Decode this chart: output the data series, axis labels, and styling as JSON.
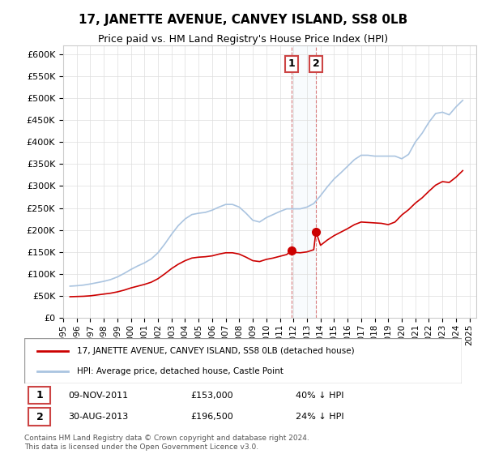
{
  "title": "17, JANETTE AVENUE, CANVEY ISLAND, SS8 0LB",
  "subtitle": "Price paid vs. HM Land Registry's House Price Index (HPI)",
  "ylabel": "",
  "ylim": [
    0,
    620000
  ],
  "yticks": [
    0,
    50000,
    100000,
    150000,
    200000,
    250000,
    300000,
    350000,
    400000,
    450000,
    500000,
    550000,
    600000
  ],
  "ytick_labels": [
    "£0",
    "£50K",
    "£100K",
    "£150K",
    "£200K",
    "£250K",
    "£300K",
    "£350K",
    "£400K",
    "£450K",
    "£500K",
    "£550K",
    "£600K"
  ],
  "hpi_color": "#aac4e0",
  "sale_color": "#cc0000",
  "marker_color": "#cc0000",
  "sale1_year": 2011.86,
  "sale1_price": 153000,
  "sale1_label": "1",
  "sale1_date": "09-NOV-2011",
  "sale1_hpi_pct": "40%",
  "sale2_year": 2013.66,
  "sale2_price": 196500,
  "sale2_label": "2",
  "sale2_date": "30-AUG-2013",
  "sale2_hpi_pct": "24%",
  "legend_label_sale": "17, JANETTE AVENUE, CANVEY ISLAND, SS8 0LB (detached house)",
  "legend_label_hpi": "HPI: Average price, detached house, Castle Point",
  "footer": "Contains HM Land Registry data © Crown copyright and database right 2024.\nThis data is licensed under the Open Government Licence v3.0.",
  "background_color": "#ffffff",
  "grid_color": "#dddddd",
  "hpi_data": {
    "years": [
      1995.5,
      1996.0,
      1996.5,
      1997.0,
      1997.5,
      1998.0,
      1998.5,
      1999.0,
      1999.5,
      2000.0,
      2000.5,
      2001.0,
      2001.5,
      2002.0,
      2002.5,
      2003.0,
      2003.5,
      2004.0,
      2004.5,
      2005.0,
      2005.5,
      2006.0,
      2006.5,
      2007.0,
      2007.5,
      2008.0,
      2008.5,
      2009.0,
      2009.5,
      2010.0,
      2010.5,
      2011.0,
      2011.5,
      2012.0,
      2012.5,
      2013.0,
      2013.5,
      2014.0,
      2014.5,
      2015.0,
      2015.5,
      2016.0,
      2016.5,
      2017.0,
      2017.5,
      2018.0,
      2018.5,
      2019.0,
      2019.5,
      2020.0,
      2020.5,
      2021.0,
      2021.5,
      2022.0,
      2022.5,
      2023.0,
      2023.5,
      2024.0,
      2024.5
    ],
    "values": [
      72000,
      73000,
      74500,
      77000,
      80000,
      83000,
      87000,
      93000,
      101000,
      110000,
      118000,
      125000,
      134000,
      148000,
      168000,
      190000,
      210000,
      225000,
      235000,
      238000,
      240000,
      245000,
      252000,
      258000,
      258000,
      252000,
      238000,
      222000,
      218000,
      228000,
      235000,
      242000,
      248000,
      248000,
      248000,
      252000,
      260000,
      278000,
      298000,
      316000,
      330000,
      345000,
      360000,
      370000,
      370000,
      368000,
      368000,
      368000,
      368000,
      362000,
      372000,
      400000,
      420000,
      445000,
      465000,
      468000,
      462000,
      480000,
      495000
    ]
  },
  "sale_data": {
    "years": [
      1995.5,
      1996.0,
      1996.5,
      1997.0,
      1997.5,
      1998.0,
      1998.5,
      1999.0,
      1999.5,
      2000.0,
      2000.5,
      2001.0,
      2001.5,
      2002.0,
      2002.5,
      2003.0,
      2003.5,
      2004.0,
      2004.5,
      2005.0,
      2005.5,
      2006.0,
      2006.5,
      2007.0,
      2007.5,
      2008.0,
      2008.5,
      2009.0,
      2009.5,
      2010.0,
      2010.5,
      2011.0,
      2011.5,
      2011.86,
      2012.0,
      2012.5,
      2013.0,
      2013.5,
      2013.66,
      2014.0,
      2014.5,
      2015.0,
      2015.5,
      2016.0,
      2016.5,
      2017.0,
      2017.5,
      2018.0,
      2018.5,
      2019.0,
      2019.5,
      2020.0,
      2020.5,
      2021.0,
      2021.5,
      2022.0,
      2022.5,
      2023.0,
      2023.5,
      2024.0,
      2024.5
    ],
    "values": [
      48000,
      48500,
      49000,
      50000,
      52000,
      54000,
      56000,
      59000,
      63000,
      68000,
      72000,
      76000,
      81000,
      89000,
      100000,
      112000,
      122000,
      130000,
      136000,
      138000,
      139000,
      141000,
      145000,
      148000,
      148000,
      145000,
      138000,
      130000,
      128000,
      133000,
      136000,
      140000,
      144000,
      153000,
      149000,
      148000,
      150000,
      155000,
      196500,
      165000,
      177000,
      187000,
      195000,
      203000,
      212000,
      218000,
      217000,
      216000,
      215000,
      212000,
      218000,
      234000,
      246000,
      261000,
      273000,
      288000,
      302000,
      310000,
      308000,
      320000,
      335000
    ]
  }
}
